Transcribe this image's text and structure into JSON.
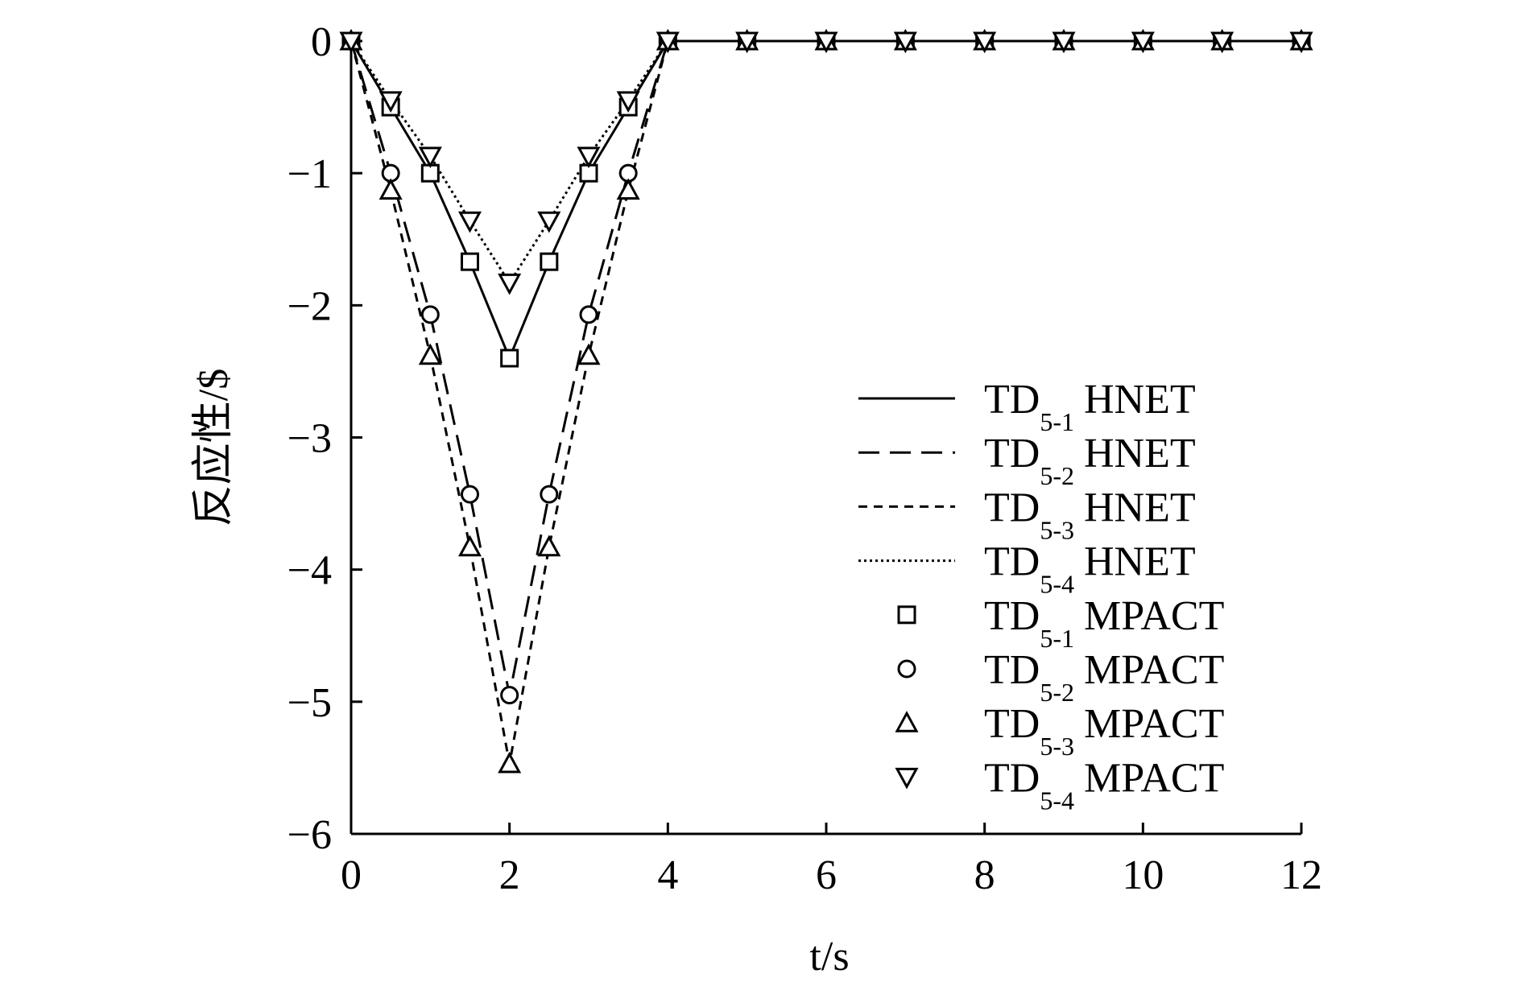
{
  "chart_data": {
    "type": "line",
    "xlabel": "t/s",
    "ylabel": "反应性/$",
    "x": [
      0,
      0.5,
      1,
      1.5,
      2,
      2.5,
      3,
      3.5,
      4,
      5,
      6,
      7,
      8,
      9,
      10,
      11,
      12
    ],
    "xlim": [
      0,
      12
    ],
    "xticks": [
      0,
      2,
      4,
      6,
      8,
      10,
      12
    ],
    "ylim": [
      -6,
      0
    ],
    "yticks": [
      {
        "value": -6,
        "label": "−6"
      },
      {
        "value": -5,
        "label": "−5"
      },
      {
        "value": -4,
        "label": "−4"
      },
      {
        "value": -3,
        "label": "−3"
      },
      {
        "value": -2,
        "label": "−2"
      },
      {
        "value": -1,
        "label": "−1"
      },
      0
    ],
    "series": [
      {
        "name": [
          "TD",
          "5-1",
          "HNET"
        ],
        "color": "#000000",
        "style": "solid",
        "values": [
          0,
          -0.5,
          -1,
          -1.67,
          -2.4,
          -1.67,
          -1,
          -0.5,
          0,
          0,
          0,
          0,
          0,
          0,
          0,
          0,
          0
        ]
      },
      {
        "name": [
          "TD",
          "5-2",
          "HNET"
        ],
        "color": "#000000",
        "style": "dashed",
        "values": [
          0,
          -1.0,
          -2.07,
          -3.43,
          -4.95,
          -3.43,
          -2.07,
          -1.0,
          0,
          0,
          0,
          0,
          0,
          0,
          0,
          0,
          0
        ]
      },
      {
        "name": [
          "TD",
          "5-3",
          "HNET"
        ],
        "color": "#000000",
        "style": "short-dashed",
        "values": [
          0,
          -1.13,
          -2.38,
          -3.83,
          -5.47,
          -3.83,
          -2.38,
          -1.13,
          0,
          0,
          0,
          0,
          0,
          0,
          0,
          0,
          0
        ]
      },
      {
        "name": [
          "TD",
          "5-4",
          "HNET"
        ],
        "color": "#000000",
        "style": "dotted",
        "values": [
          0,
          -0.45,
          -0.87,
          -1.36,
          -1.83,
          -1.36,
          -0.87,
          -0.45,
          0,
          0,
          0,
          0,
          0,
          0,
          0,
          0,
          0
        ]
      },
      {
        "name": [
          "TD",
          "5-1",
          "MPACT"
        ],
        "color": "#000000",
        "marker": "square",
        "values": [
          0,
          -0.5,
          -1,
          -1.67,
          -2.4,
          -1.67,
          -1,
          -0.5,
          0,
          0,
          0,
          0,
          0,
          0,
          0,
          0,
          0
        ]
      },
      {
        "name": [
          "TD",
          "5-2",
          "MPACT"
        ],
        "color": "#000000",
        "marker": "circle",
        "values": [
          0,
          -1.0,
          -2.07,
          -3.43,
          -4.95,
          -3.43,
          -2.07,
          -1.0,
          0,
          0,
          0,
          0,
          0,
          0,
          0,
          0,
          0
        ]
      },
      {
        "name": [
          "TD",
          "5-3",
          "MPACT"
        ],
        "color": "#000000",
        "marker": "triangle-up",
        "values": [
          0,
          -1.13,
          -2.38,
          -3.83,
          -5.47,
          -3.83,
          -2.38,
          -1.13,
          0,
          0,
          0,
          0,
          0,
          0,
          0,
          0,
          0
        ]
      },
      {
        "name": [
          "TD",
          "5-4",
          "MPACT"
        ],
        "color": "#000000",
        "marker": "triangle-down",
        "values": [
          0,
          -0.45,
          -0.87,
          -1.36,
          -1.83,
          -1.36,
          -0.87,
          -0.45,
          0,
          0,
          0,
          0,
          0,
          0,
          0,
          0,
          0
        ]
      }
    ]
  }
}
